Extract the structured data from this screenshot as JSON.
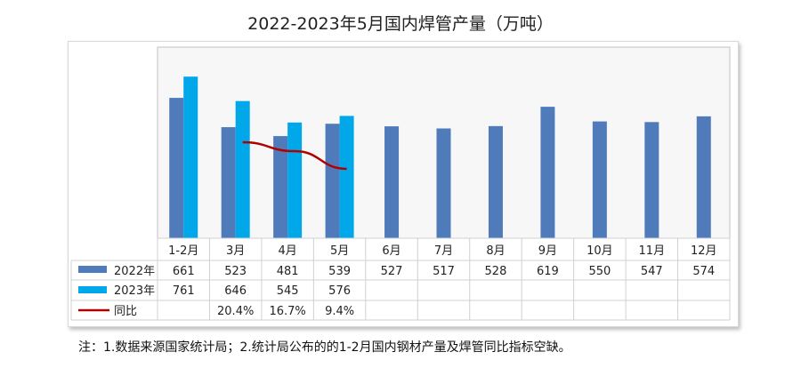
{
  "chart_data": {
    "type": "bar",
    "title": "2022-2023年5月国内焊管产量（万吨）",
    "categories": [
      "1-2月",
      "3月",
      "4月",
      "5月",
      "6月",
      "7月",
      "8月",
      "9月",
      "10月",
      "11月",
      "12月"
    ],
    "ylim": [
      0,
      900
    ],
    "grid": false,
    "legend": "data-table-left",
    "series": [
      {
        "name": "2022年",
        "type": "bar",
        "color": "#4f7bbb",
        "values": [
          661,
          523,
          481,
          539,
          527,
          517,
          528,
          619,
          550,
          547,
          574
        ]
      },
      {
        "name": "2023年",
        "type": "bar",
        "color": "#00a8ea",
        "values": [
          761,
          646,
          545,
          576,
          null,
          null,
          null,
          null,
          null,
          null,
          null
        ]
      },
      {
        "name": "同比",
        "type": "line",
        "color": "#b00000",
        "values": [
          null,
          20.4,
          16.7,
          9.4,
          null,
          null,
          null,
          null,
          null,
          null,
          null
        ],
        "labels": [
          "",
          "20.4%",
          "16.7%",
          "9.4%",
          "",
          "",
          "",
          "",
          "",
          "",
          ""
        ]
      }
    ]
  },
  "footnote": "注：1.数据来源国家统计局；2.统计局公布的的1-2月国内钢材产量及焊管同比指标空缺。"
}
